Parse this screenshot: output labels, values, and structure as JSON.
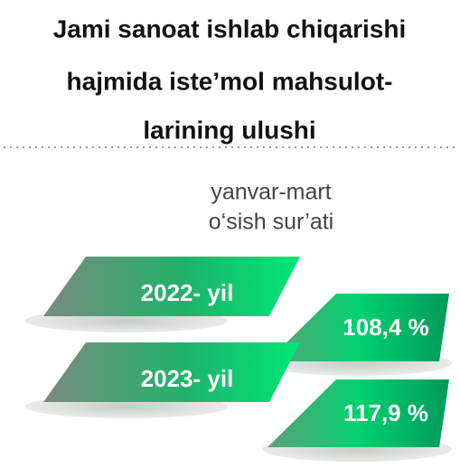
{
  "title": {
    "lines": [
      "Jami sanoat ishlab chiqarishi",
      "hajmida  iste’mol mahsulot-",
      "larining  ulushi"
    ]
  },
  "subtitle": {
    "lines": [
      "yanvar-mart",
      "o‘sish sur’ati"
    ]
  },
  "items": [
    {
      "year": "2022- yil",
      "growth": "108,4 %"
    },
    {
      "year": "2023- yil",
      "growth": "117,9 %"
    }
  ]
}
